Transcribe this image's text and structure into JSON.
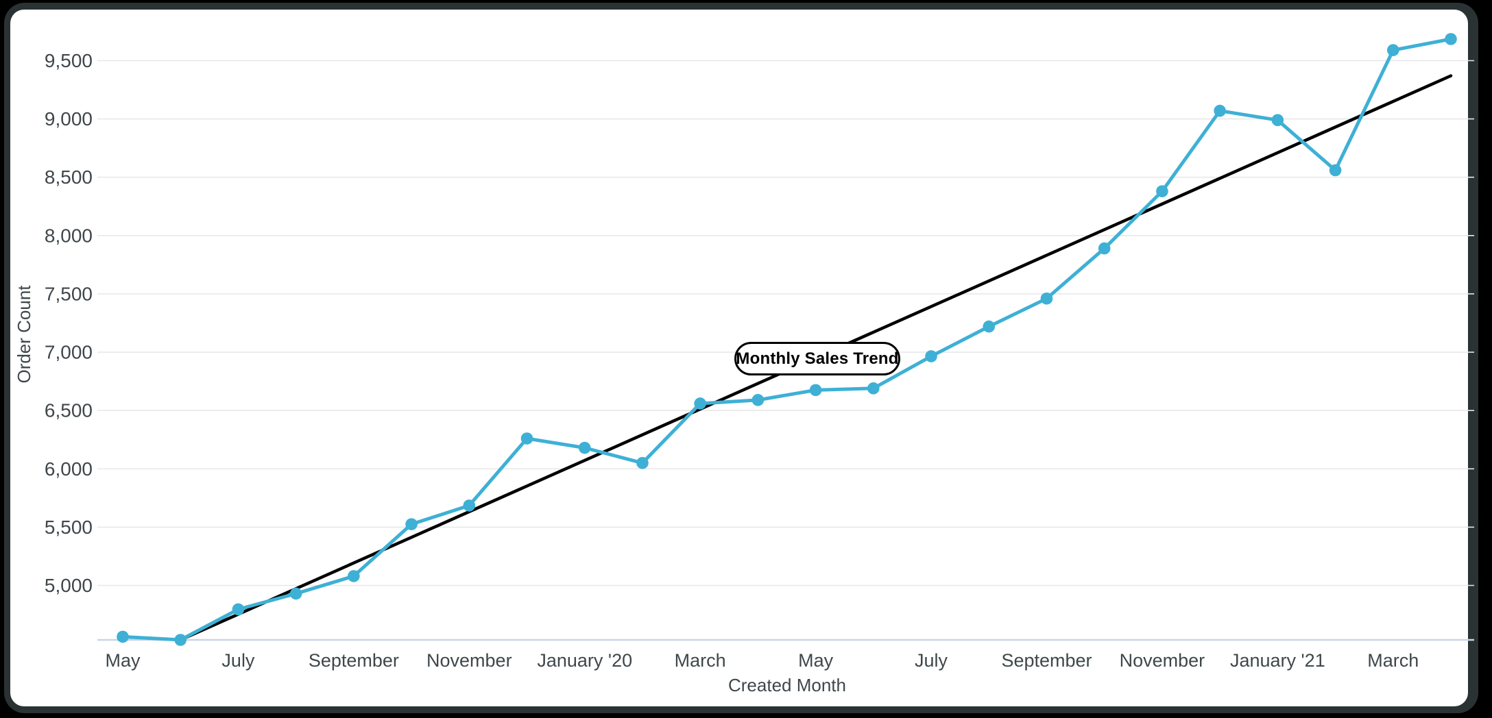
{
  "window": {
    "background": "#000000",
    "frame_color": "#2b3233",
    "card_background": "#ffffff"
  },
  "chart_data": {
    "type": "line",
    "title": "Monthly Sales Trend",
    "xlabel": "Created Month",
    "ylabel": "Order Count",
    "categories": [
      "May 2019",
      "June 2019",
      "July 2019",
      "August 2019",
      "September 2019",
      "October 2019",
      "November 2019",
      "December 2019",
      "January 2020",
      "February 2020",
      "March 2020",
      "April 2020",
      "May 2020",
      "June 2020",
      "July 2020",
      "August 2020",
      "September 2020",
      "October 2020",
      "November 2020",
      "December 2020",
      "January 2021",
      "February 2021",
      "March 2021",
      "April 2021"
    ],
    "x_axis_tick_labels": [
      "May",
      "July",
      "September",
      "November",
      "January '20",
      "March",
      "May",
      "July",
      "September",
      "November",
      "January '21",
      "March"
    ],
    "x_axis_tick_every": 2,
    "series": [
      {
        "name": "Order Count",
        "style": "line_with_markers",
        "color": "#3eb0d5",
        "values": [
          4560,
          4533,
          4795,
          4930,
          5080,
          5525,
          5685,
          6260,
          6180,
          6050,
          6560,
          6590,
          6675,
          6690,
          6965,
          7220,
          7460,
          7890,
          8380,
          9070,
          8990,
          8560,
          9590,
          9685
        ]
      },
      {
        "name": "Linear Trend",
        "style": "trend_line",
        "color": "#000000",
        "start_category_index": 1,
        "start_value": 4533,
        "end_category_index": 23,
        "end_value": 9370
      }
    ],
    "ylim": [
      4533,
      9745
    ],
    "yticks": [
      5000,
      5500,
      6000,
      6500,
      7000,
      7500,
      8000,
      8500,
      9000,
      9500
    ],
    "ytick_format": "thousands_comma",
    "grid": "horizontal",
    "legend": "none",
    "colors": {
      "grid_line": "#e8e8e8",
      "axis_line": "#ccd3e8",
      "tick_label": "#3f474b",
      "axis_title": "#3f474b",
      "annotation_border": "#000000",
      "annotation_background": "#ffffff"
    }
  }
}
